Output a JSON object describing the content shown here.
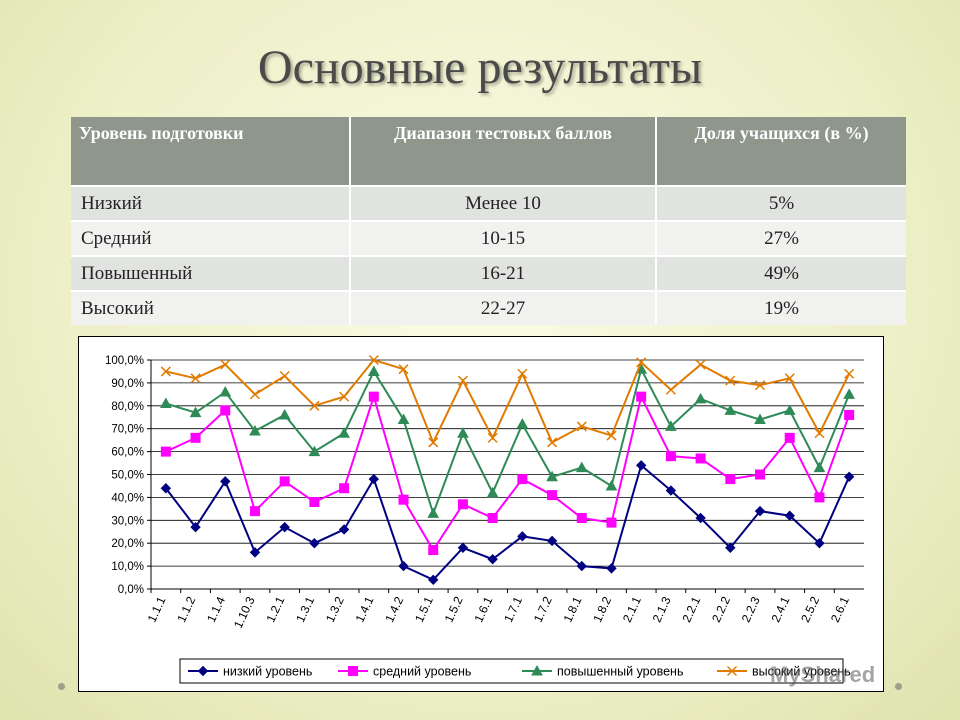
{
  "title": "Основные результаты",
  "table": {
    "headers": [
      "Уровень подготовки",
      "Диапазон тестовых баллов",
      "Доля учащихся (в %)"
    ],
    "rows": [
      [
        "Низкий",
        "Менее 10",
        "5%"
      ],
      [
        "Средний",
        "10-15",
        "27%"
      ],
      [
        "Повышенный",
        "16-21",
        "49%"
      ],
      [
        "Высокий",
        "22-27",
        "19%"
      ]
    ]
  },
  "watermark": "MyShared",
  "chart_data": {
    "type": "line",
    "categories": [
      "1.1.1",
      "1.1.2",
      "1.1.4",
      "1.10.3",
      "1.2.1",
      "1.3.1",
      "1.3.2",
      "1.4.1",
      "1.4.2",
      "1.5.1",
      "1.5.2",
      "1.6.1",
      "1.7.1",
      "1.7.2",
      "1.8.1",
      "1.8.2",
      "2.1.1",
      "2.1.3",
      "2.2.1",
      "2.2.2",
      "2.2.3",
      "2.4.1",
      "2.5.2",
      "2.6.1"
    ],
    "ylim": [
      0,
      100
    ],
    "yticks": [
      "0,0%",
      "10,0%",
      "20,0%",
      "30,0%",
      "40,0%",
      "50,0%",
      "60,0%",
      "70,0%",
      "80,0%",
      "90,0%",
      "100,0%"
    ],
    "grid": true,
    "legend_position": "bottom",
    "series": [
      {
        "name": "низкий уровень",
        "color": "#000080",
        "marker": "diamond",
        "values": [
          44,
          27,
          47,
          16,
          27,
          20,
          26,
          48,
          10,
          4,
          18,
          13,
          23,
          21,
          10,
          9,
          54,
          43,
          31,
          18,
          34,
          32,
          20,
          49
        ]
      },
      {
        "name": "средний уровень",
        "color": "#ff00ff",
        "marker": "square",
        "values": [
          60,
          66,
          78,
          34,
          47,
          38,
          44,
          84,
          39,
          17,
          37,
          31,
          48,
          41,
          31,
          29,
          84,
          58,
          57,
          48,
          50,
          66,
          40,
          76
        ]
      },
      {
        "name": "повышенный уровень",
        "color": "#2e8b57",
        "marker": "triangle",
        "values": [
          81,
          77,
          86,
          69,
          76,
          60,
          68,
          95,
          74,
          33,
          68,
          42,
          72,
          49,
          53,
          45,
          96,
          71,
          83,
          78,
          74,
          78,
          53,
          85
        ]
      },
      {
        "name": "высокий уровень",
        "color": "#e07b00",
        "marker": "x",
        "values": [
          95,
          92,
          98,
          85,
          93,
          80,
          84,
          100,
          96,
          64,
          91,
          66,
          94,
          64,
          71,
          67,
          99,
          87,
          98,
          91,
          89,
          92,
          68,
          94
        ]
      }
    ]
  }
}
